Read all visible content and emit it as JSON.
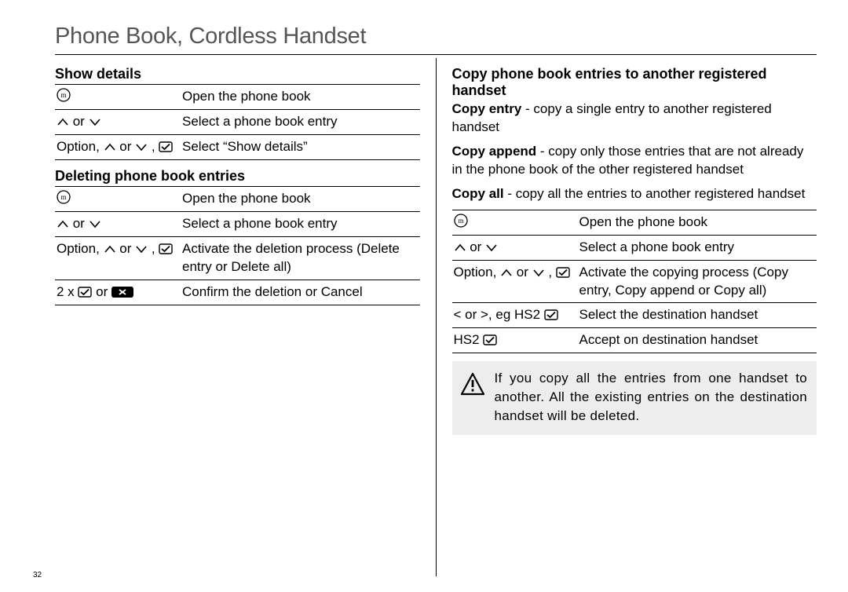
{
  "page_title": "Phone Book, Cordless Handset",
  "page_number": "32",
  "icons": {
    "phonebook": "phonebook-icon",
    "up": "up-icon",
    "down": "down-icon",
    "check": "check-icon",
    "cancel": "cancel-icon",
    "warning": "warning-icon"
  },
  "colors": {
    "text": "#000000",
    "title": "#555555",
    "bg": "#ffffff",
    "note_bg": "#ededed",
    "rule": "#000000"
  },
  "fonts": {
    "title_size": 29,
    "body_size": 17,
    "subhead_size": 18,
    "pagenum_size": 10,
    "title_weight": 300,
    "subhead_weight": 700
  },
  "left": {
    "sec1": {
      "heading": "Show details",
      "rows": [
        {
          "k": "{phonebook}",
          "v": "Open the phone book"
        },
        {
          "k": "{up} or {down}",
          "v": "Select a phone book entry"
        },
        {
          "k": "Option, {up} or {down} , {check}",
          "v": "Select “Show details”"
        }
      ]
    },
    "sec2": {
      "heading": "Deleting phone book entries",
      "rows": [
        {
          "k": "{phonebook}",
          "v": "Open the phone book"
        },
        {
          "k": "{up} or {down}",
          "v": "Select a phone book entry"
        },
        {
          "k": "Option, {up} or {down} , {check}",
          "v": "Activate the deletion process (Delete entry or Delete all)"
        },
        {
          "k": "<b>2 x {check} or {cancel}</b>",
          "v": "Confirm the deletion or Cancel"
        }
      ]
    }
  },
  "right": {
    "heading": "Copy phone book entries to another registered handset",
    "defs": [
      {
        "term": "Copy entry",
        "text": " - copy a single entry to another registered handset"
      },
      {
        "term": "Copy append",
        "text": " - copy only those entries that are not already in the phone book of the other registered handset"
      },
      {
        "term": "Copy all",
        "text": " - copy all the entries to another registered handset"
      }
    ],
    "rows": [
      {
        "k": "{phonebook}",
        "v": "Open the phone book"
      },
      {
        "k": "{up} or {down}",
        "v": "Select a phone book entry"
      },
      {
        "k": "Option, {up} or {down} , {check}",
        "v": "Activate the copying process (Copy entry, Copy append or Copy all)"
      },
      {
        "k": "< or >, eg HS2 {check}",
        "v": "Select the destination handset"
      },
      {
        "k": "HS2 {check}",
        "v": "Accept on destination handset"
      }
    ],
    "note": "If you copy all the entries from one handset to another. All the existing entries on the destination handset will be deleted."
  }
}
